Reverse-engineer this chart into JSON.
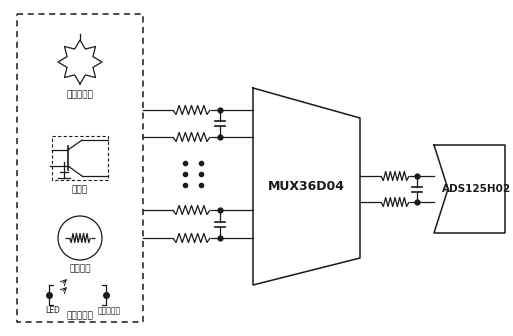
{
  "bg_color": "#ffffff",
  "line_color": "#1a1a1a",
  "mux_label": "MUX36D04",
  "adc_label": "ADS125H02",
  "label_bridge": "桥式传感器",
  "label_tc": "热电偶",
  "label_cs": "电流感应",
  "label_led": "LED",
  "label_pd": "光电探测器",
  "label_optical": "光学传感器",
  "figw": 5.13,
  "figh": 3.36,
  "dpi": 100
}
